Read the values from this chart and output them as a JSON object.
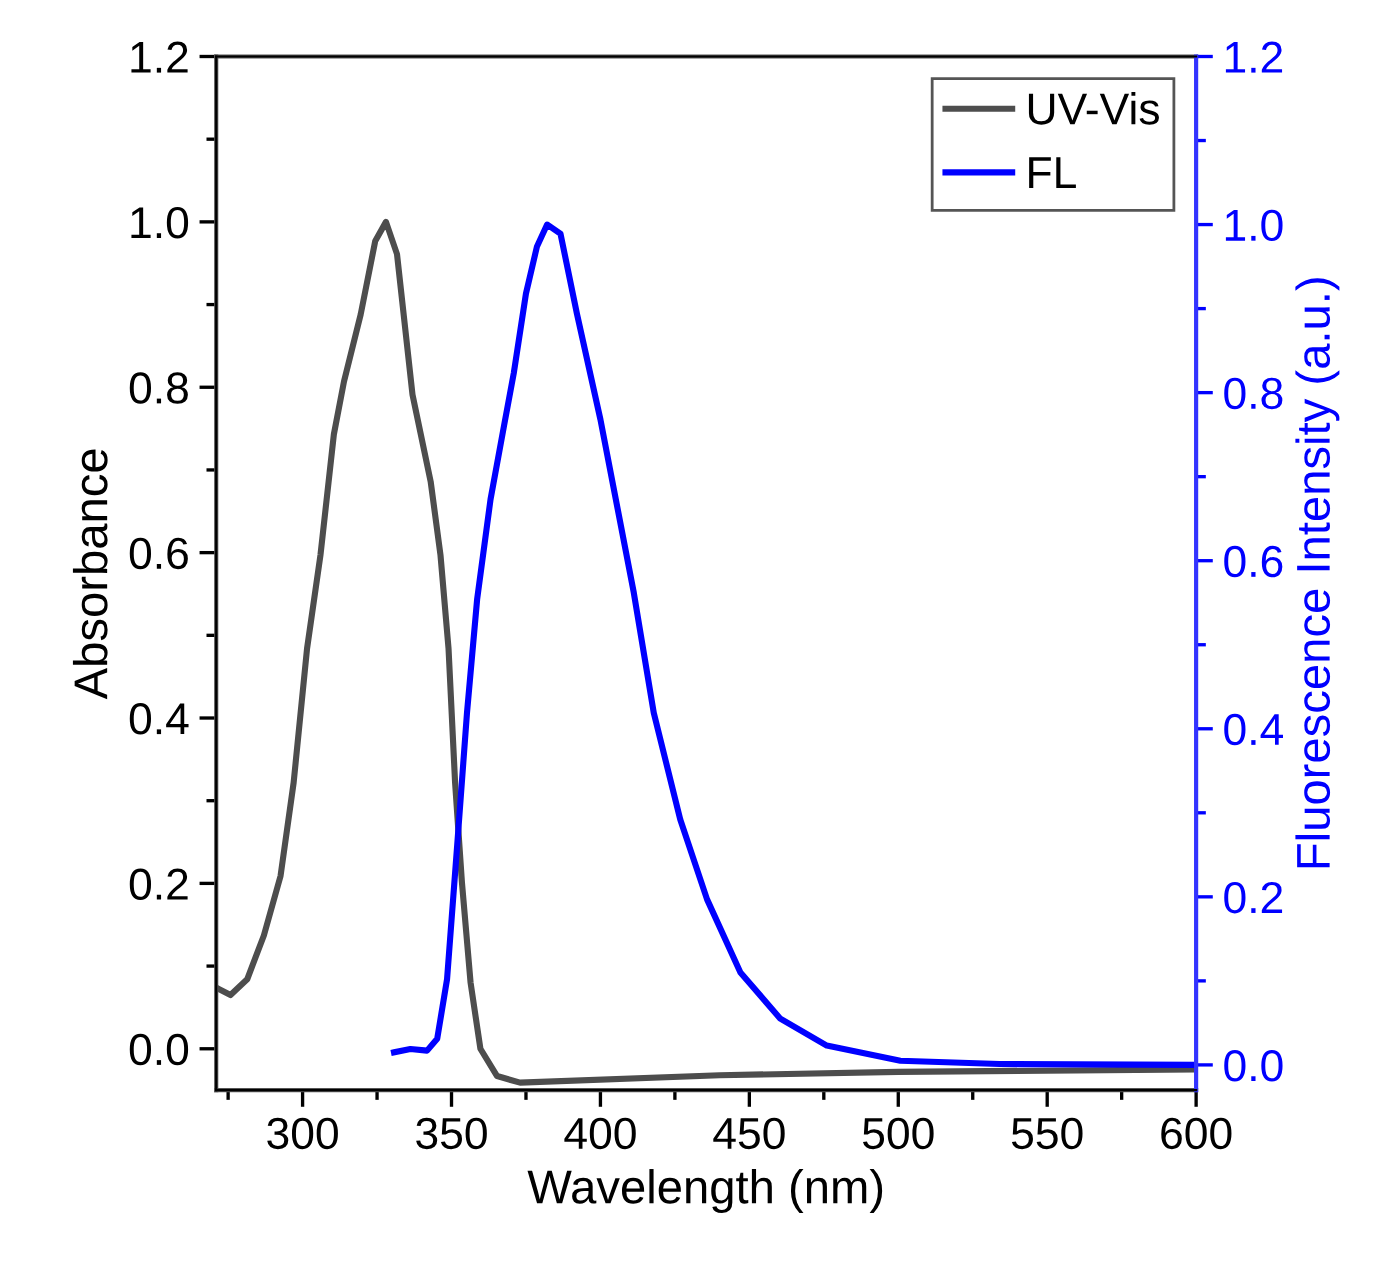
{
  "chart_data": {
    "type": "line",
    "xlabel": "Wavelength (nm)",
    "ylabel": "Absorbance",
    "y2label": "Fluorescence Intensity (a.u.)",
    "xlim": [
      271,
      600
    ],
    "xticks": [
      300,
      350,
      400,
      450,
      500,
      550,
      600
    ],
    "ylim": [
      -0.05,
      1.2
    ],
    "yticks": [
      {
        "value": 0,
        "label": "0.0"
      },
      0.2,
      0.4,
      0.6,
      0.8,
      {
        "value": 1,
        "label": "1.0"
      },
      1.2
    ],
    "y2lim": [
      -0.03,
      1.2
    ],
    "y2ticks": [
      {
        "value": 0,
        "label": "0.0"
      },
      0.2,
      0.4,
      0.6,
      0.8,
      {
        "value": 1,
        "label": "1.0"
      },
      1.2
    ],
    "legend": "top right",
    "grid": false,
    "line_style": "solid",
    "marker": "none",
    "series": [
      {
        "name": "UV-Vis",
        "color": "#4d4d4d",
        "x": [
          272,
          275.8,
          281.4,
          287,
          292.6,
          297,
          301.5,
          306,
          310.5,
          313.9,
          319.5,
          324.4,
          328,
          331.7,
          336.9,
          343,
          346.3,
          349,
          351.2,
          353.5,
          356.4,
          359.7,
          365.3,
          373,
          440,
          500,
          599
        ],
        "values": [
          0.072,
          0.065,
          0.084,
          0.137,
          0.209,
          0.322,
          0.484,
          0.597,
          0.743,
          0.807,
          0.888,
          0.977,
          1.0,
          0.961,
          0.791,
          0.686,
          0.597,
          0.484,
          0.322,
          0.201,
          0.08,
          0.0,
          -0.033,
          -0.041,
          -0.032,
          -0.028,
          -0.025
        ]
      },
      {
        "name": "FL",
        "color": "#0000ff",
        "axis": "y2",
        "x": [
          330.7,
          336.2,
          341.8,
          345.2,
          348.5,
          351.9,
          355.2,
          358.6,
          363.1,
          367.6,
          370.9,
          375,
          378.7,
          382.1,
          386.6,
          392.1,
          400,
          411.2,
          417.9,
          426.8,
          435.8,
          447,
          460.4,
          476,
          500.7,
          534,
          599
        ],
        "values": [
          0.015,
          0.019,
          0.017,
          0.031,
          0.102,
          0.261,
          0.419,
          0.554,
          0.673,
          0.76,
          0.823,
          0.918,
          0.974,
          1.0,
          0.989,
          0.894,
          0.768,
          0.562,
          0.419,
          0.292,
          0.197,
          0.11,
          0.055,
          0.023,
          0.005,
          0.001,
          0.0
        ]
      }
    ]
  }
}
